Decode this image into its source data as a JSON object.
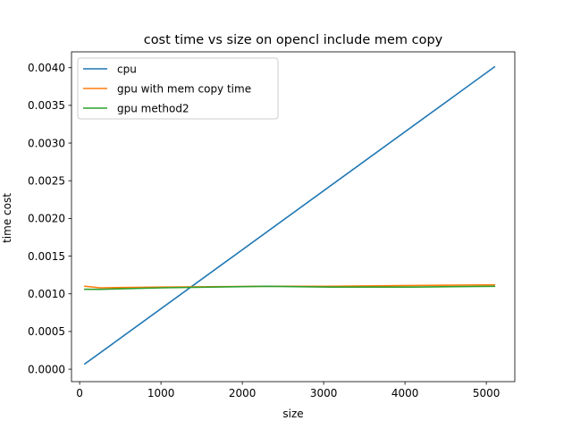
{
  "chart_data": {
    "type": "line",
    "title": "cost time vs size on opencl include mem copy",
    "xlabel": "size",
    "ylabel": "time cost",
    "xlim": [
      -100,
      5350
    ],
    "ylim": [
      -0.000165,
      0.00421
    ],
    "xticks": [
      0,
      1000,
      2000,
      3000,
      4000,
      5000
    ],
    "xtick_labels": [
      "0",
      "1000",
      "2000",
      "3000",
      "4000",
      "5000"
    ],
    "yticks": [
      0.0,
      0.0005,
      0.001,
      0.0015,
      0.002,
      0.0025,
      0.003,
      0.0035,
      0.004
    ],
    "ytick_labels": [
      "0.0000",
      "0.0005",
      "0.0010",
      "0.0015",
      "0.0020",
      "0.0025",
      "0.0030",
      "0.0035",
      "0.0040"
    ],
    "grid": false,
    "legend_position": "top-left",
    "series": [
      {
        "name": "cpu",
        "color": "#1f77b4",
        "x": [
          64,
          5100
        ],
        "y": [
          7e-05,
          0.00401
        ]
      },
      {
        "name": "gpu with mem copy time",
        "color": "#ff7f0e",
        "x": [
          64,
          256,
          1024,
          2304,
          3072,
          4096,
          5100
        ],
        "y": [
          0.0011,
          0.00108,
          0.00109,
          0.0011,
          0.0011,
          0.00111,
          0.00112
        ]
      },
      {
        "name": "gpu method2",
        "color": "#2ca02c",
        "x": [
          64,
          256,
          1024,
          2304,
          3072,
          4096,
          5100
        ],
        "y": [
          0.00106,
          0.00106,
          0.00108,
          0.0011,
          0.00109,
          0.00109,
          0.0011
        ]
      }
    ]
  }
}
